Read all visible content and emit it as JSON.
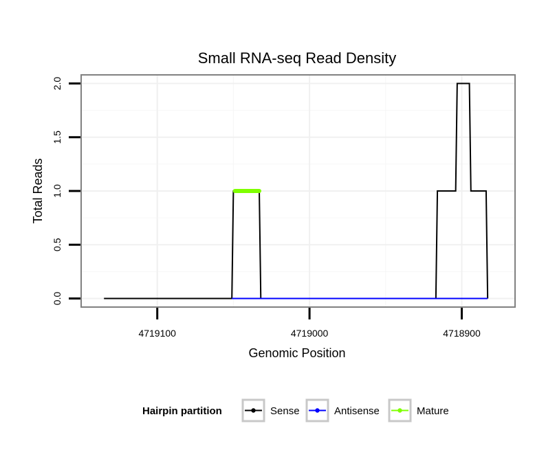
{
  "chart_data": {
    "type": "line",
    "title": "Small RNA-seq Read Density",
    "xlabel": "Genomic Position",
    "ylabel": "Total Reads",
    "x_reversed": true,
    "xlim": [
      4719150,
      4718865
    ],
    "ylim": [
      -0.08,
      2.08
    ],
    "x_ticks": [
      4719100,
      4719000,
      4718900
    ],
    "x_tick_labels": [
      "4719100",
      "4719000",
      "4718900"
    ],
    "y_ticks": [
      0,
      0.5,
      1,
      1.5,
      2
    ],
    "y_tick_labels": [
      "0.0",
      "0.5",
      "1.0",
      "1.5",
      "2.0"
    ],
    "grid": true,
    "series": [
      {
        "name": "Sense",
        "color": "#000000",
        "x": [
          4719135,
          4719051,
          4719050,
          4719033,
          4719032,
          4718917,
          4718916,
          4718904,
          4718903,
          4718895,
          4718894,
          4718884,
          4718883
        ],
        "y": [
          0,
          0,
          1,
          1,
          0,
          0,
          1,
          1,
          2,
          2,
          1,
          1,
          0
        ]
      },
      {
        "name": "Antisense",
        "color": "#0000ff",
        "x": [
          4719051,
          4719032,
          4718917,
          4718883
        ],
        "y": [
          0,
          0,
          0,
          0
        ]
      },
      {
        "name": "Mature",
        "color": "#7fff00",
        "x": [
          4719049,
          4719033
        ],
        "y": [
          1,
          1
        ]
      }
    ],
    "legend": {
      "title": "Hairpin partition",
      "position": "bottom",
      "entries": [
        "Sense",
        "Antisense",
        "Mature"
      ]
    }
  }
}
